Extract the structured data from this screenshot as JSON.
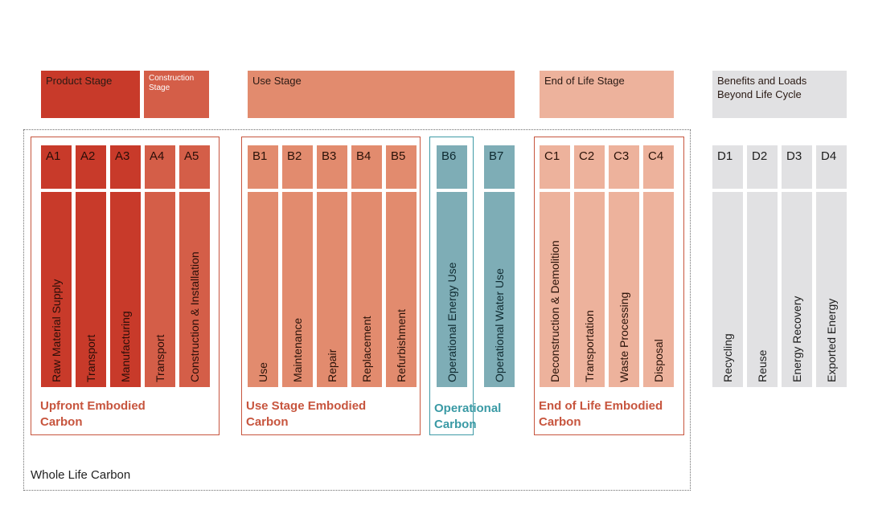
{
  "stages": {
    "product": "Product Stage",
    "construction": "Construction Stage",
    "use": "Use Stage",
    "end_of_life": "End of Life Stage",
    "beyond": "Benefits and Loads Beyond Life Cycle"
  },
  "modules": [
    {
      "code": "A1",
      "label": "Raw Material Supply",
      "color": "#c83a2a"
    },
    {
      "code": "A2",
      "label": "Transport",
      "color": "#c83a2a"
    },
    {
      "code": "A3",
      "label": "Manufacturing",
      "color": "#c83a2a"
    },
    {
      "code": "A4",
      "label": "Transport",
      "color": "#d45e48"
    },
    {
      "code": "A5",
      "label": "Construction & Installation",
      "color": "#d45e48"
    },
    {
      "code": "B1",
      "label": "Use",
      "color": "#e28b6e"
    },
    {
      "code": "B2",
      "label": "Maintenance",
      "color": "#e28b6e"
    },
    {
      "code": "B3",
      "label": "Repair",
      "color": "#e28b6e"
    },
    {
      "code": "B4",
      "label": "Replacement",
      "color": "#e28b6e"
    },
    {
      "code": "B5",
      "label": "Refurbishment",
      "color": "#e28b6e"
    },
    {
      "code": "B6",
      "label": "Operational Energy Use",
      "color": "#7eadb6"
    },
    {
      "code": "B7",
      "label": "Operational Water Use",
      "color": "#7eadb6"
    },
    {
      "code": "C1",
      "label": "Deconstruction & Demolition",
      "color": "#edb29c"
    },
    {
      "code": "C2",
      "label": "Transportation",
      "color": "#edb29c"
    },
    {
      "code": "C3",
      "label": "Waste Processing",
      "color": "#edb29c"
    },
    {
      "code": "C4",
      "label": "Disposal",
      "color": "#edb29c"
    },
    {
      "code": "D1",
      "label": "Recycling",
      "color": "#e1e1e3"
    },
    {
      "code": "D2",
      "label": "Reuse",
      "color": "#e1e1e3"
    },
    {
      "code": "D3",
      "label": "Energy Recovery",
      "color": "#e1e1e3"
    },
    {
      "code": "D4",
      "label": "Exported Energy",
      "color": "#e1e1e3"
    }
  ],
  "groups": {
    "upfront": "Upfront Embodied Carbon",
    "use_embodied": "Use Stage Embodied Carbon",
    "operational": "Operational Carbon",
    "eol": "End of Life Embodied Carbon",
    "whole": "Whole Life Carbon"
  },
  "colors": {
    "product_header": "#c83a2a",
    "construction_header": "#d45e48",
    "use_header": "#e28b6e",
    "eol_header": "#edb29c",
    "beyond_header": "#e1e1e3",
    "outline_red": "#c7553e",
    "outline_teal": "#3f9aa6"
  }
}
